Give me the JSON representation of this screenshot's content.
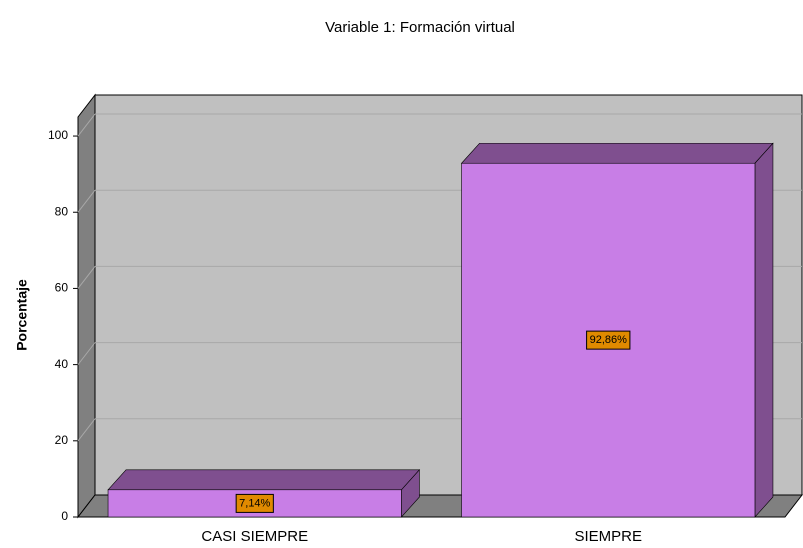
{
  "chart_data": {
    "type": "bar3d",
    "title": "Variable 1: Formación virtual",
    "y_label": "Porcentaje",
    "categories": [
      "CASI SIEMPRE",
      "SIEMPRE"
    ],
    "values": [
      7.14,
      92.86
    ],
    "value_labels": [
      "7,14%",
      "92,86%"
    ],
    "color": "#c87ee6",
    "ylim": [
      0,
      105
    ],
    "yticks": [
      0,
      20,
      40,
      60,
      80,
      100
    ],
    "grid": true
  }
}
